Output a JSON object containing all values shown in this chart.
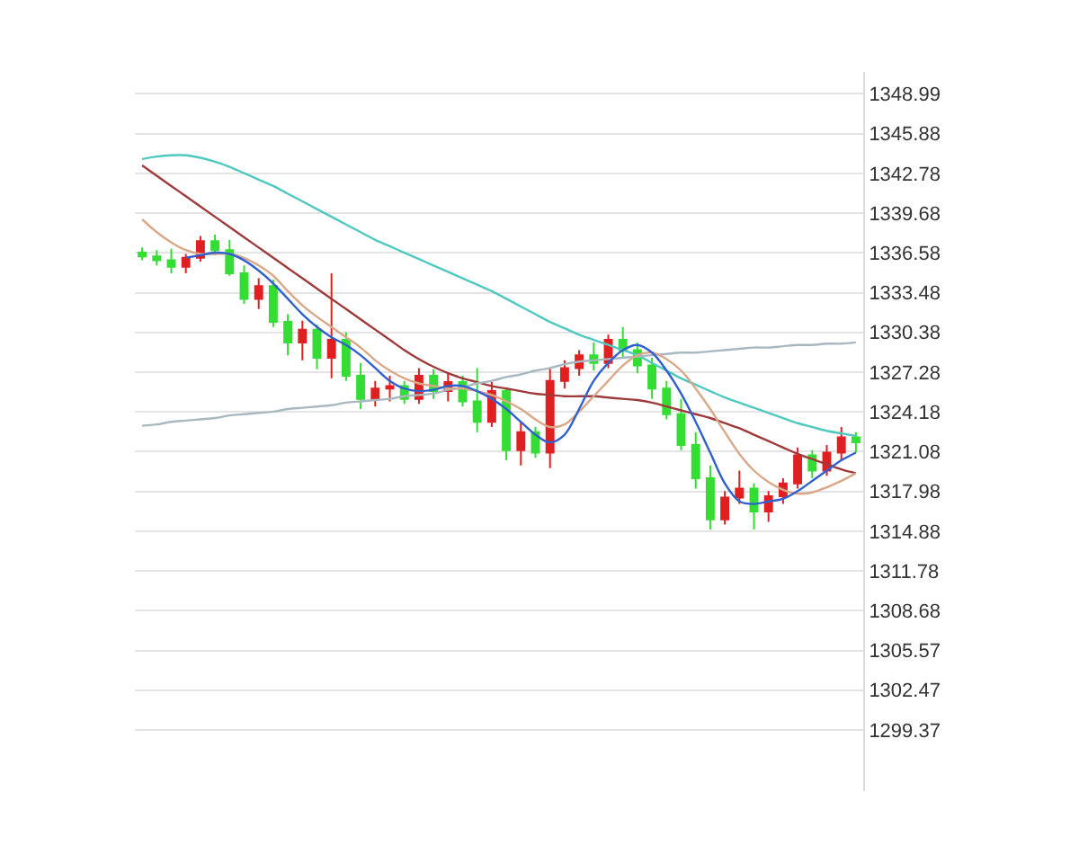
{
  "chart_data": {
    "type": "candlestick",
    "categories": [
      null,
      null,
      null,
      null,
      null,
      null,
      null,
      null,
      null,
      null,
      null,
      null,
      null,
      null,
      null,
      null,
      null,
      null,
      null,
      null,
      null,
      null,
      null,
      null,
      null,
      null,
      null,
      null,
      null,
      null,
      null,
      null,
      null,
      null,
      null,
      null,
      null,
      null,
      null,
      null,
      null,
      null,
      null,
      null,
      null,
      null,
      null,
      null,
      null,
      null
    ],
    "ohlc": [
      [
        1336.6,
        1337.0,
        1336.0,
        1336.3
      ],
      [
        1336.3,
        1336.8,
        1335.6,
        1336.0
      ],
      [
        1336.0,
        1336.9,
        1335.0,
        1335.5
      ],
      [
        1335.5,
        1336.5,
        1335.0,
        1336.2
      ],
      [
        1336.2,
        1337.9,
        1335.9,
        1337.5
      ],
      [
        1337.5,
        1338.0,
        1336.4,
        1336.8
      ],
      [
        1336.8,
        1337.6,
        1334.8,
        1335.0
      ],
      [
        1335.0,
        1335.6,
        1332.6,
        1333.0
      ],
      [
        1333.0,
        1334.6,
        1332.2,
        1334.0
      ],
      [
        1334.0,
        1334.5,
        1330.8,
        1331.2
      ],
      [
        1331.2,
        1331.8,
        1328.6,
        1329.6
      ],
      [
        1329.6,
        1331.3,
        1328.2,
        1330.6
      ],
      [
        1330.6,
        1331.0,
        1327.5,
        1328.4
      ],
      [
        1328.4,
        1335.0,
        1326.8,
        1329.8
      ],
      [
        1329.8,
        1330.4,
        1326.6,
        1327.0
      ],
      [
        1327.0,
        1328.0,
        1324.4,
        1325.2
      ],
      [
        1325.2,
        1326.6,
        1324.6,
        1326.0
      ],
      [
        1326.0,
        1327.0,
        1325.0,
        1326.2
      ],
      [
        1326.2,
        1326.6,
        1324.8,
        1325.2
      ],
      [
        1325.2,
        1327.6,
        1324.8,
        1327.0
      ],
      [
        1327.0,
        1327.5,
        1325.2,
        1325.8
      ],
      [
        1325.8,
        1327.2,
        1325.0,
        1326.5
      ],
      [
        1326.5,
        1327.0,
        1324.6,
        1325.0
      ],
      [
        1325.0,
        1327.6,
        1322.6,
        1323.4
      ],
      [
        1323.4,
        1326.5,
        1323.0,
        1325.8
      ],
      [
        1325.8,
        1326.0,
        1320.4,
        1321.2
      ],
      [
        1321.2,
        1323.4,
        1320.0,
        1322.6
      ],
      [
        1322.6,
        1323.0,
        1320.6,
        1321.0
      ],
      [
        1321.0,
        1327.6,
        1319.8,
        1326.6
      ],
      [
        1326.6,
        1328.2,
        1326.0,
        1327.6
      ],
      [
        1327.6,
        1329.0,
        1327.0,
        1328.6
      ],
      [
        1328.6,
        1329.6,
        1327.4,
        1328.0
      ],
      [
        1328.0,
        1330.2,
        1327.6,
        1329.8
      ],
      [
        1329.8,
        1330.8,
        1328.4,
        1329.0
      ],
      [
        1329.0,
        1329.6,
        1327.2,
        1327.8
      ],
      [
        1327.8,
        1328.4,
        1325.2,
        1326.0
      ],
      [
        1326.0,
        1326.6,
        1323.6,
        1324.0
      ],
      [
        1324.0,
        1325.2,
        1321.2,
        1321.6
      ],
      [
        1321.6,
        1322.6,
        1318.2,
        1319.0
      ],
      [
        1319.0,
        1320.0,
        1315.0,
        1315.8
      ],
      [
        1315.8,
        1318.0,
        1315.4,
        1317.5
      ],
      [
        1317.5,
        1319.6,
        1317.0,
        1318.2
      ],
      [
        1318.2,
        1318.6,
        1315.0,
        1316.4
      ],
      [
        1316.4,
        1318.0,
        1315.6,
        1317.6
      ],
      [
        1317.6,
        1319.0,
        1317.0,
        1318.6
      ],
      [
        1318.6,
        1321.4,
        1318.2,
        1320.8
      ],
      [
        1320.8,
        1321.2,
        1319.0,
        1319.6
      ],
      [
        1319.6,
        1321.6,
        1319.2,
        1321.0
      ],
      [
        1321.0,
        1323.0,
        1320.4,
        1322.2
      ],
      [
        1322.2,
        1322.6,
        1321.0,
        1321.8
      ]
    ],
    "colors": [
      "#33dd33",
      "#33dd33",
      "#33dd33",
      "#e02020",
      "#e02020",
      "#33dd33",
      "#33dd33",
      "#33dd33",
      "#e02020",
      "#33dd33",
      "#33dd33",
      "#e02020",
      "#33dd33",
      "#e02020",
      "#33dd33",
      "#33dd33",
      "#e02020",
      "#e02020",
      "#33dd33",
      "#e02020",
      "#33dd33",
      "#e02020",
      "#33dd33",
      "#33dd33",
      "#e02020",
      "#33dd33",
      "#e02020",
      "#33dd33",
      "#e02020",
      "#e02020",
      "#e02020",
      "#33dd33",
      "#e02020",
      "#33dd33",
      "#33dd33",
      "#33dd33",
      "#33dd33",
      "#33dd33",
      "#33dd33",
      "#33dd33",
      "#e02020",
      "#e02020",
      "#33dd33",
      "#e02020",
      "#e02020",
      "#e02020",
      "#33dd33",
      "#e02020",
      "#e02020",
      "#33dd33"
    ],
    "series": [
      {
        "type": "line",
        "color": "#4fc9c0",
        "values": [
          1343.9,
          1344.1,
          1344.2,
          1344.2,
          1344.0,
          1343.7,
          1343.3,
          1342.8,
          1342.3,
          1341.8,
          1341.2,
          1340.6,
          1340.0,
          1339.4,
          1338.8,
          1338.2,
          1337.6,
          1337.1,
          1336.6,
          1336.1,
          1335.6,
          1335.1,
          1334.6,
          1334.1,
          1333.6,
          1333.0,
          1332.4,
          1331.8,
          1331.2,
          1330.7,
          1330.2,
          1329.8,
          1329.4,
          1329.0,
          1328.6,
          1328.0,
          1327.4,
          1326.8,
          1326.3,
          1325.8,
          1325.3,
          1324.9,
          1324.5,
          1324.1,
          1323.7,
          1323.3,
          1323.0,
          1322.7,
          1322.5,
          1322.3
        ]
      },
      {
        "type": "line",
        "color": "#9e3a3a",
        "values": [
          1343.4,
          1342.6,
          1341.8,
          1341.0,
          1340.2,
          1339.4,
          1338.6,
          1337.8,
          1337.0,
          1336.2,
          1335.4,
          1334.6,
          1333.8,
          1333.0,
          1332.2,
          1331.4,
          1330.6,
          1329.8,
          1329.0,
          1328.3,
          1327.7,
          1327.2,
          1326.8,
          1326.5,
          1326.2,
          1326.0,
          1325.8,
          1325.6,
          1325.5,
          1325.4,
          1325.4,
          1325.4,
          1325.3,
          1325.2,
          1325.1,
          1324.9,
          1324.6,
          1324.3,
          1324.0,
          1323.7,
          1323.3,
          1322.9,
          1322.4,
          1321.9,
          1321.4,
          1320.9,
          1320.5,
          1320.1,
          1319.7,
          1319.4
        ]
      },
      {
        "type": "line",
        "color": "#a8b8c0",
        "values": [
          1323.1,
          1323.2,
          1323.4,
          1323.5,
          1323.6,
          1323.7,
          1323.9,
          1324.0,
          1324.1,
          1324.2,
          1324.4,
          1324.5,
          1324.6,
          1324.7,
          1324.9,
          1325.0,
          1325.1,
          1325.2,
          1325.4,
          1325.5,
          1325.6,
          1325.9,
          1326.1,
          1326.4,
          1326.6,
          1326.9,
          1327.1,
          1327.4,
          1327.6,
          1327.9,
          1328.1,
          1328.2,
          1328.3,
          1328.4,
          1328.5,
          1328.6,
          1328.7,
          1328.8,
          1328.8,
          1328.9,
          1329.0,
          1329.1,
          1329.2,
          1329.2,
          1329.3,
          1329.4,
          1329.4,
          1329.5,
          1329.5,
          1329.6
        ]
      },
      {
        "type": "line",
        "color": "#d8a888",
        "values": [
          1339.2,
          1338.2,
          1337.4,
          1336.8,
          1336.5,
          1336.5,
          1336.5,
          1336.2,
          1335.6,
          1334.8,
          1333.6,
          1332.5,
          1331.6,
          1330.8,
          1330.0,
          1329.2,
          1328.2,
          1327.4,
          1326.8,
          1326.4,
          1326.2,
          1326.0,
          1326.0,
          1325.8,
          1325.5,
          1325.0,
          1324.4,
          1323.6,
          1323.0,
          1323.2,
          1324.2,
          1325.4,
          1326.6,
          1327.8,
          1328.6,
          1328.8,
          1328.3,
          1327.4,
          1326.0,
          1324.4,
          1322.6,
          1320.9,
          1319.6,
          1318.7,
          1318.1,
          1317.8,
          1317.9,
          1318.3,
          1318.8,
          1319.4
        ]
      },
      {
        "type": "line",
        "color": "#3060d0",
        "values": [
          null,
          null,
          null,
          1336.2,
          1336.4,
          1336.6,
          1336.5,
          1336.0,
          1335.2,
          1334.2,
          1333.0,
          1331.8,
          1330.8,
          1330.0,
          1329.4,
          1328.6,
          1327.6,
          1326.6,
          1326.0,
          1325.8,
          1325.9,
          1326.2,
          1326.2,
          1325.8,
          1325.2,
          1324.4,
          1323.4,
          1322.4,
          1321.8,
          1322.4,
          1324.4,
          1326.6,
          1328.0,
          1329.0,
          1329.4,
          1328.8,
          1327.4,
          1325.6,
          1323.4,
          1321.0,
          1318.6,
          1317.2,
          1317.0,
          1317.2,
          1317.4,
          1318.0,
          1318.8,
          1319.6,
          1320.4,
          1321.0
        ]
      }
    ],
    "ylim": [
      1294.6,
      1350.7
    ],
    "yticks": [
      1348.99,
      1345.88,
      1342.78,
      1339.68,
      1336.58,
      1333.48,
      1330.38,
      1327.28,
      1324.18,
      1321.08,
      1317.98,
      1314.88,
      1311.78,
      1308.68,
      1305.57,
      1302.47,
      1299.37
    ],
    "grid": "y"
  }
}
